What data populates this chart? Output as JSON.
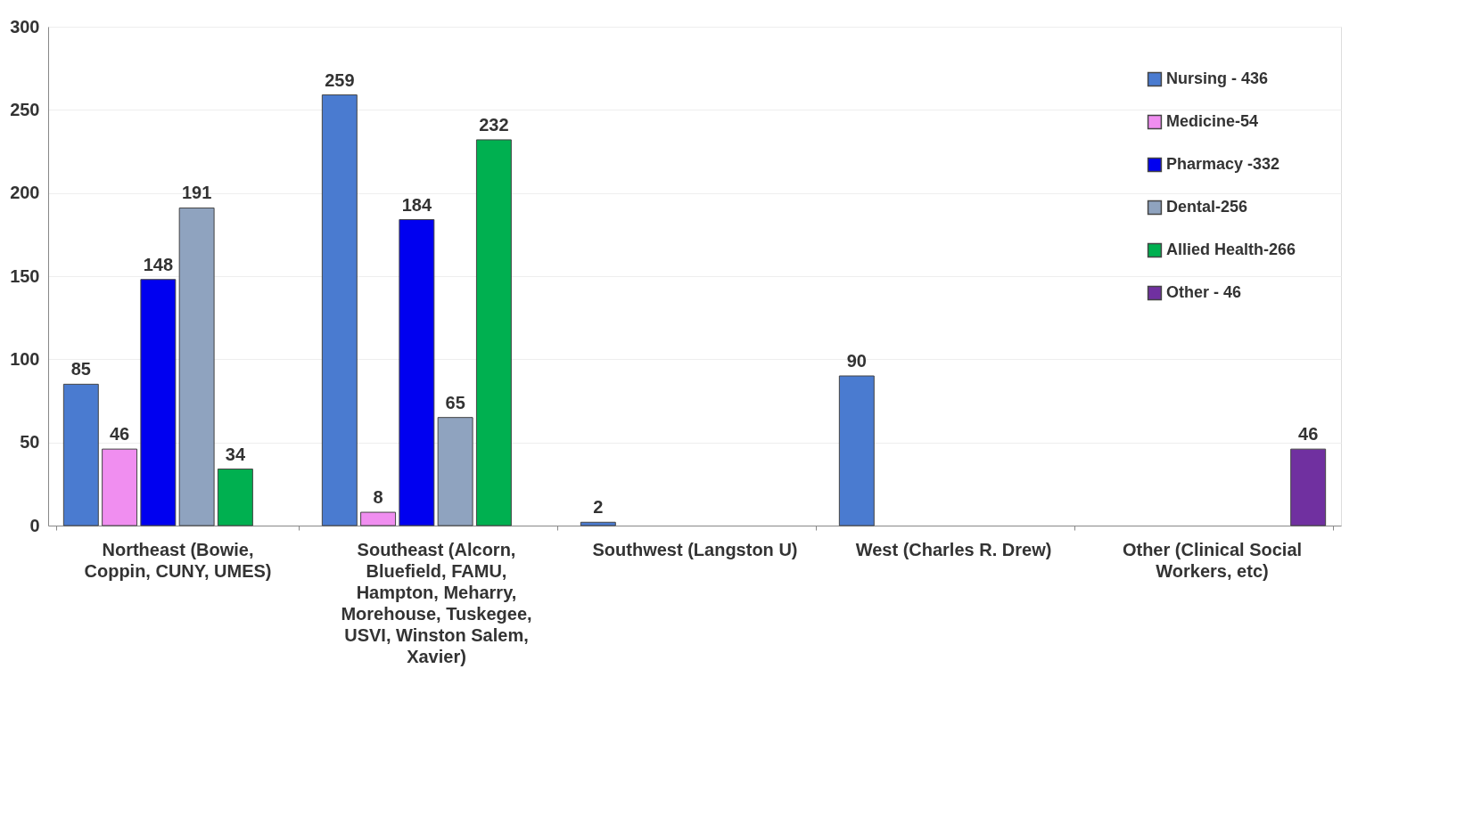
{
  "chart_data": {
    "type": "bar",
    "categories": [
      "Northeast (Bowie, Coppin, CUNY, UMES)",
      "Southeast (Alcorn, Bluefield, FAMU, Hampton, Meharry, Morehouse, Tuskegee, USVI, Winston Salem, Xavier)",
      "Southwest (Langston U)",
      "West (Charles R. Drew)",
      "Other (Clinical Social Workers, etc)"
    ],
    "series": [
      {
        "name": "Nursing - 436",
        "color": "#4a7bd0",
        "values": [
          85,
          259,
          2,
          90,
          null
        ]
      },
      {
        "name": "Medicine-54",
        "color": "#f08ef0",
        "values": [
          46,
          8,
          null,
          null,
          null
        ]
      },
      {
        "name": "Pharmacy -332",
        "color": "#0000f0",
        "values": [
          148,
          184,
          null,
          null,
          null
        ]
      },
      {
        "name": "Dental-256",
        "color": "#8fa3bf",
        "values": [
          191,
          65,
          null,
          null,
          null
        ]
      },
      {
        "name": "Allied Health-266",
        "color": "#00b050",
        "values": [
          34,
          232,
          null,
          null,
          null
        ]
      },
      {
        "name": "Other - 46",
        "color": "#7030a0",
        "values": [
          null,
          null,
          null,
          null,
          46
        ]
      }
    ],
    "ylim": [
      0,
      300
    ],
    "yticks": [
      0,
      50,
      100,
      150,
      200,
      250,
      300
    ],
    "data_labels": true,
    "grid": "y",
    "legend": "top right"
  }
}
